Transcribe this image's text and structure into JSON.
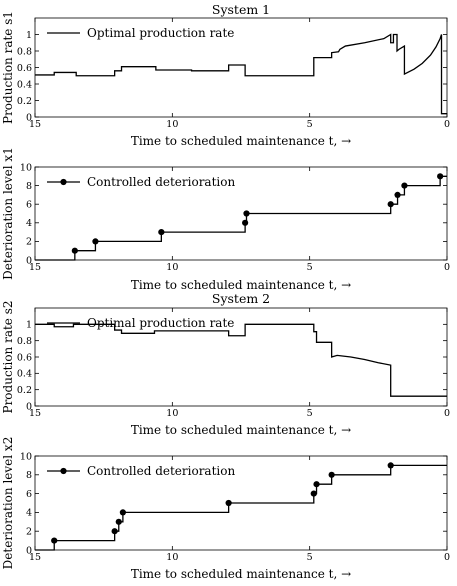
{
  "chart_data": [
    {
      "type": "line",
      "title": "System 1",
      "xlabel": "Time to scheduled maintenance t, →",
      "ylabel": "Production rate s1",
      "xlim": [
        15,
        0
      ],
      "ylim": [
        0,
        1.2
      ],
      "xticks": [
        15,
        10,
        5,
        0
      ],
      "yticks": [
        0,
        0.2,
        0.4,
        0.6,
        0.8,
        1
      ],
      "legend": "top-left",
      "series": [
        {
          "name": "Optimal production rate",
          "markers": false,
          "x": [
            15,
            14.3,
            14.3,
            13.5,
            13.5,
            12.1,
            12.1,
            11.85,
            11.85,
            10.6,
            10.6,
            9.3,
            9.3,
            7.95,
            7.95,
            7.35,
            7.35,
            4.85,
            4.85,
            4.2,
            4.2,
            3.95,
            3.9,
            3.7,
            3.0,
            2.3,
            2.05,
            2.05,
            1.95,
            1.95,
            1.82,
            1.82,
            1.75,
            1.55,
            1.55,
            1.2,
            0.9,
            0.6,
            0.4,
            0.25,
            0.2,
            0.2,
            0
          ],
          "y": [
            0.51,
            0.51,
            0.54,
            0.54,
            0.5,
            0.5,
            0.56,
            0.56,
            0.61,
            0.61,
            0.57,
            0.57,
            0.56,
            0.56,
            0.63,
            0.63,
            0.5,
            0.5,
            0.72,
            0.72,
            0.78,
            0.79,
            0.82,
            0.86,
            0.9,
            0.95,
            1.0,
            0.9,
            0.9,
            1.0,
            1.0,
            0.8,
            0.82,
            0.86,
            0.52,
            0.58,
            0.65,
            0.75,
            0.85,
            0.95,
            1.0,
            0.04,
            0.04
          ]
        }
      ]
    },
    {
      "type": "line",
      "title": "",
      "xlabel": "Time to scheduled maintenance t, →",
      "ylabel": "Deterioration level x1",
      "xlim": [
        15,
        0
      ],
      "ylim": [
        0,
        10
      ],
      "xticks": [
        15,
        10,
        5,
        0
      ],
      "yticks": [
        0,
        2,
        4,
        6,
        8,
        10
      ],
      "legend": "top-left",
      "series": [
        {
          "name": "Controlled deterioration",
          "markers": true,
          "x": [
            15,
            13.55,
            13.55,
            12.8,
            12.8,
            10.4,
            10.4,
            7.35,
            7.35,
            7.3,
            7.3,
            2.05,
            2.05,
            1.8,
            1.8,
            1.55,
            1.55,
            0.25,
            0.25,
            0
          ],
          "y": [
            0,
            0,
            1,
            1,
            2,
            2,
            3,
            3,
            4,
            4,
            5,
            5,
            6,
            6,
            7,
            7,
            8,
            8,
            9,
            9
          ],
          "marker_x": [
            13.55,
            12.8,
            10.4,
            7.35,
            7.3,
            2.05,
            1.8,
            1.55,
            0.25
          ],
          "marker_y": [
            1,
            2,
            3,
            4,
            5,
            6,
            7,
            8,
            9
          ]
        }
      ]
    },
    {
      "type": "line",
      "title": "System 2",
      "xlabel": "Time to scheduled maintenance t, →",
      "ylabel": "Production rate s2",
      "xlim": [
        15,
        0
      ],
      "ylim": [
        0,
        1.2
      ],
      "xticks": [
        15,
        10,
        5,
        0
      ],
      "yticks": [
        0,
        0.2,
        0.4,
        0.6,
        0.8,
        1
      ],
      "legend": "top-left",
      "series": [
        {
          "name": "Optimal production rate",
          "markers": false,
          "x": [
            15,
            14.3,
            14.3,
            13.6,
            13.6,
            12.1,
            12.1,
            11.85,
            11.85,
            10.65,
            10.65,
            7.95,
            7.95,
            7.35,
            7.35,
            4.85,
            4.85,
            4.75,
            4.75,
            4.2,
            4.2,
            4.0,
            3.5,
            3.0,
            2.5,
            2.05,
            2.05,
            0
          ],
          "y": [
            1.0,
            1.0,
            0.97,
            0.97,
            1.0,
            1.0,
            0.93,
            0.93,
            0.89,
            0.89,
            0.92,
            0.92,
            0.86,
            0.86,
            1.0,
            1.0,
            0.91,
            0.91,
            0.78,
            0.78,
            0.6,
            0.62,
            0.6,
            0.57,
            0.53,
            0.5,
            0.12,
            0.12
          ]
        }
      ]
    },
    {
      "type": "line",
      "title": "",
      "xlabel": "Time to scheduled maintenance t, →",
      "ylabel": "Deterioration level x2",
      "xlim": [
        15,
        0
      ],
      "ylim": [
        0,
        10
      ],
      "xticks": [
        15,
        10,
        5,
        0
      ],
      "yticks": [
        0,
        2,
        4,
        6,
        8,
        10
      ],
      "legend": "top-left",
      "series": [
        {
          "name": "Controlled deterioration",
          "markers": true,
          "x": [
            15,
            14.3,
            14.3,
            12.1,
            12.1,
            11.95,
            11.95,
            11.8,
            11.8,
            7.95,
            7.95,
            4.85,
            4.85,
            4.75,
            4.75,
            4.2,
            4.2,
            2.05,
            2.05,
            0
          ],
          "y": [
            0,
            0,
            1,
            1,
            2,
            2,
            3,
            3,
            4,
            4,
            5,
            5,
            6,
            6,
            7,
            7,
            8,
            8,
            9,
            9
          ],
          "marker_x": [
            14.3,
            12.1,
            11.95,
            11.8,
            7.95,
            4.85,
            4.75,
            4.2,
            2.05
          ],
          "marker_y": [
            1,
            2,
            3,
            4,
            5,
            6,
            7,
            8,
            9
          ]
        }
      ]
    }
  ]
}
